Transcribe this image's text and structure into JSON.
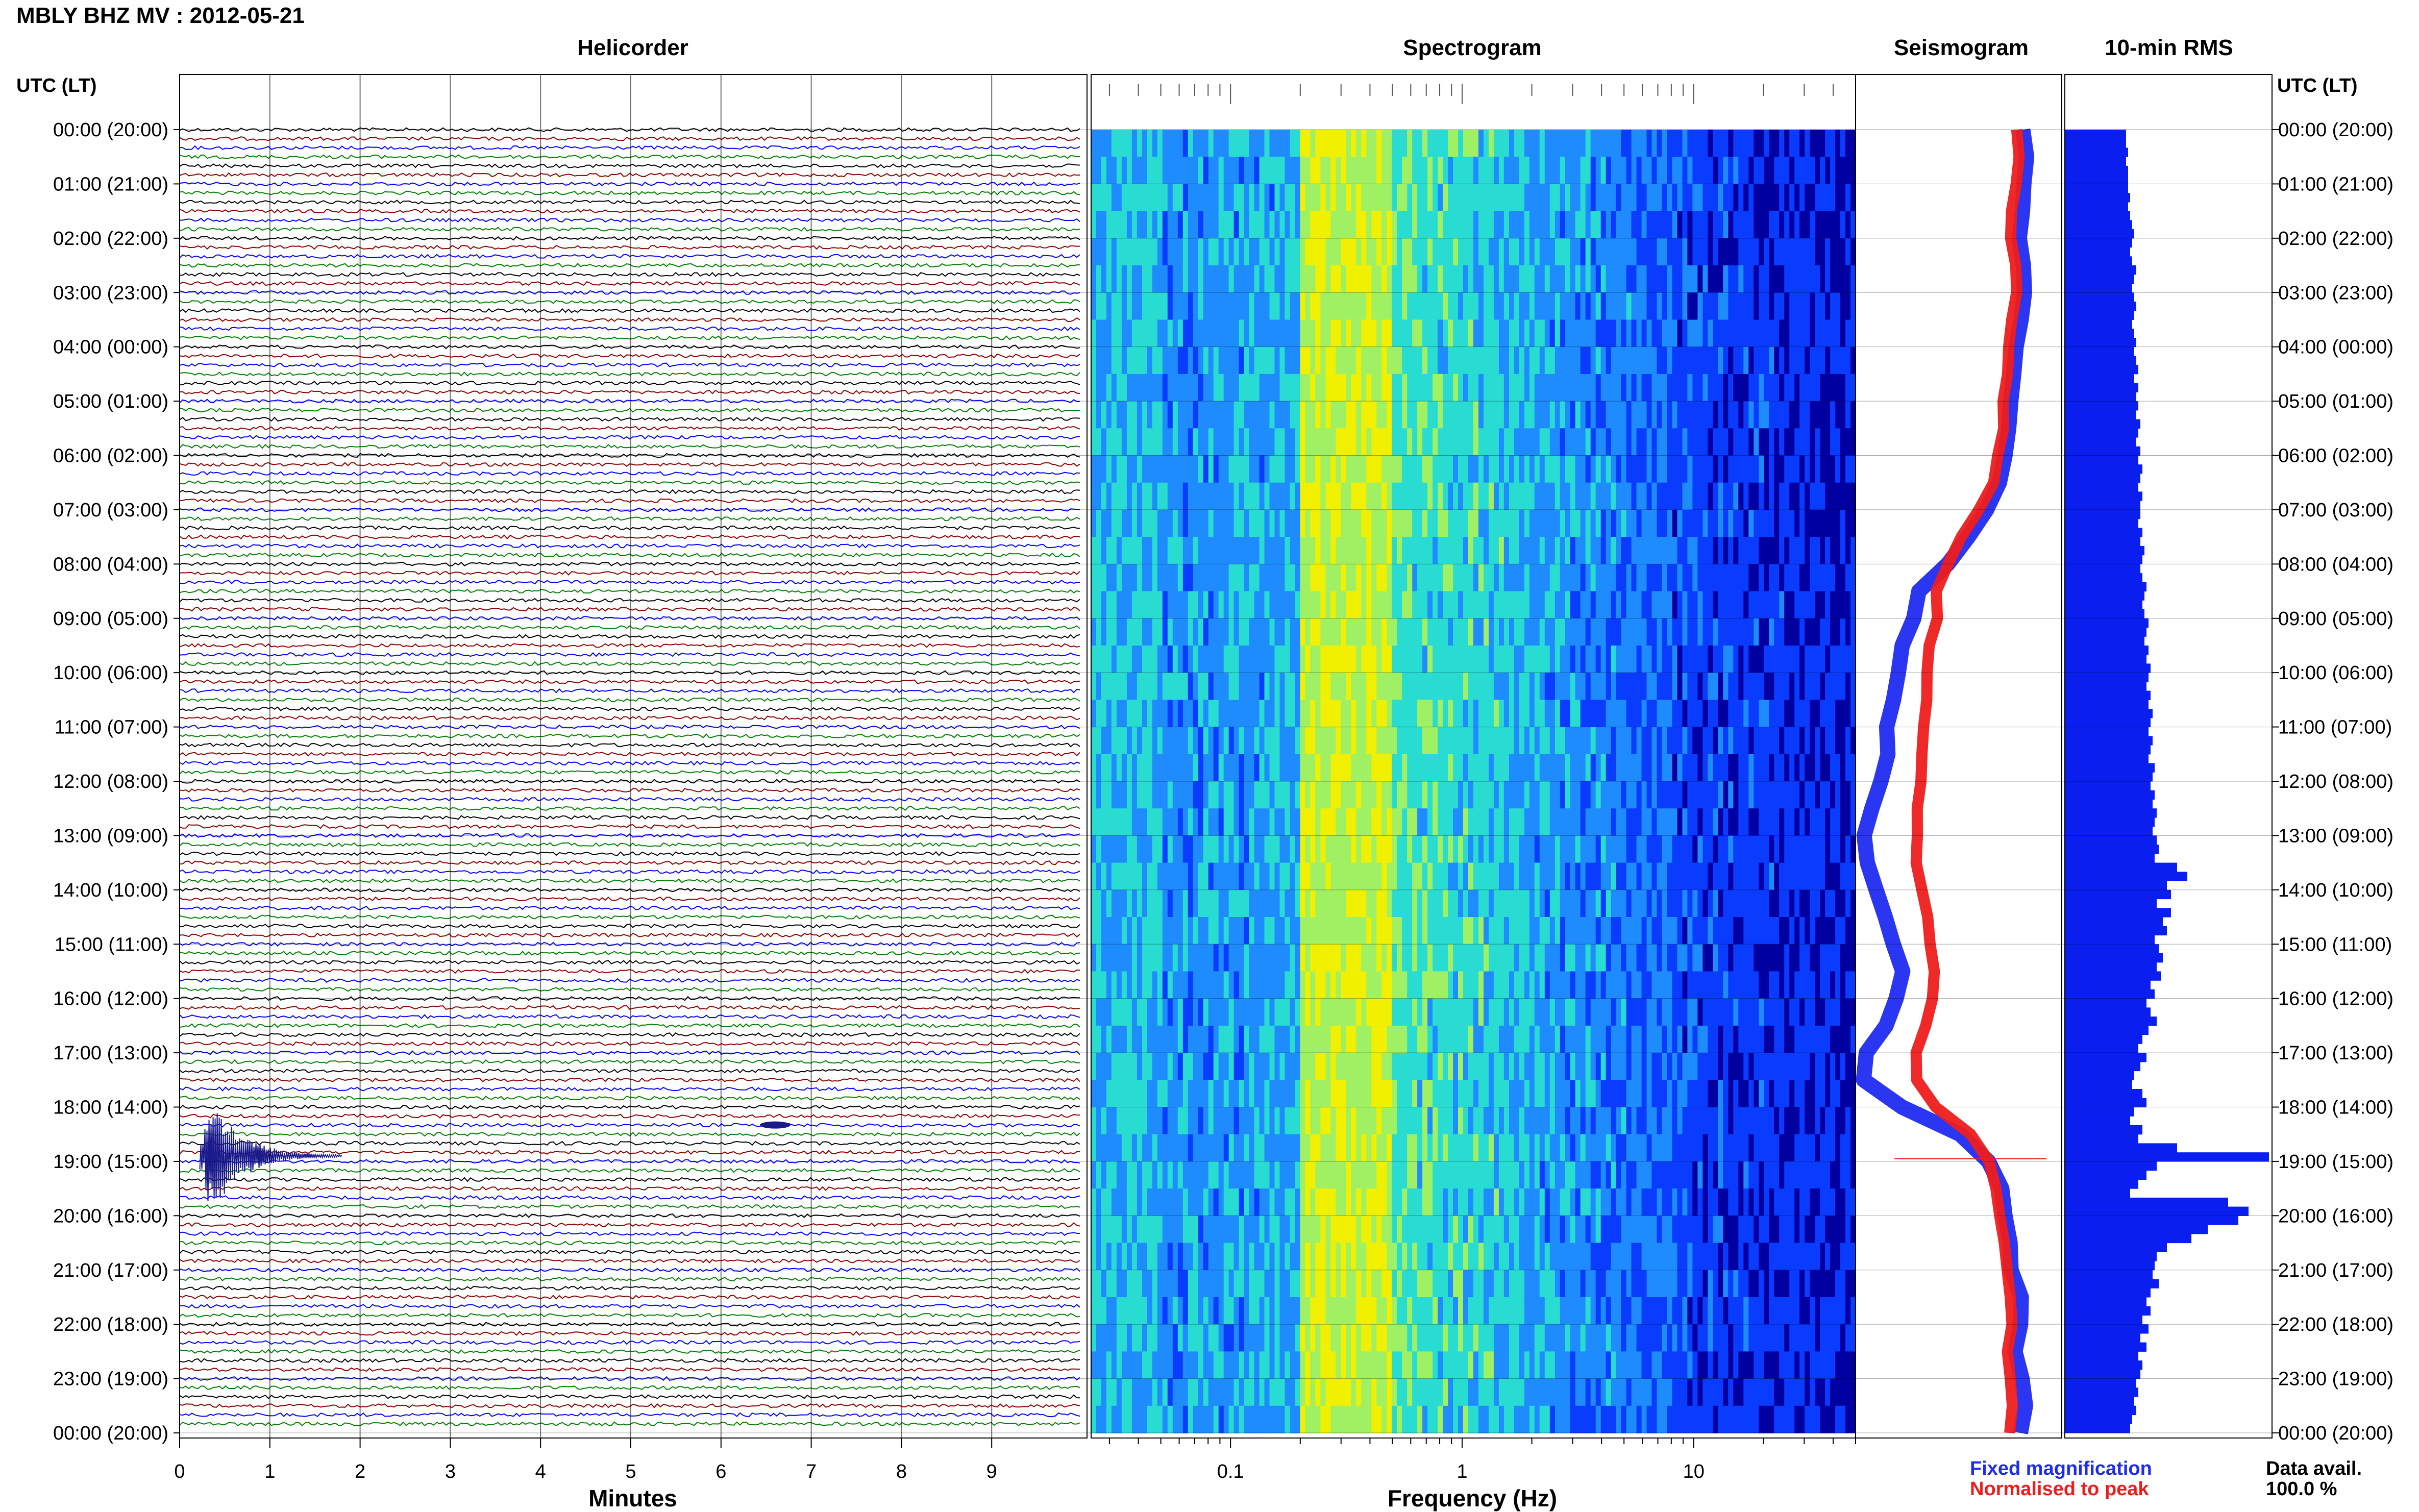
{
  "title": "MBLY BHZ MV : 2012-05-21",
  "panels": {
    "helicorder": "Helicorder",
    "spectrogram": "Spectrogram",
    "seismogram": "Seismogram",
    "rms": "10-min RMS"
  },
  "time_axis_label": "UTC (LT)",
  "hour_labels": [
    "00:00 (20:00)",
    "01:00 (21:00)",
    "02:00 (22:00)",
    "03:00 (23:00)",
    "04:00 (00:00)",
    "05:00 (01:00)",
    "06:00 (02:00)",
    "07:00 (03:00)",
    "08:00 (04:00)",
    "09:00 (05:00)",
    "10:00 (06:00)",
    "11:00 (07:00)",
    "12:00 (08:00)",
    "13:00 (09:00)",
    "14:00 (10:00)",
    "15:00 (11:00)",
    "16:00 (12:00)",
    "17:00 (13:00)",
    "18:00 (14:00)",
    "19:00 (15:00)",
    "20:00 (16:00)",
    "21:00 (17:00)",
    "22:00 (18:00)",
    "23:00 (19:00)",
    "00:00 (20:00)"
  ],
  "legend": {
    "fixed": "Fixed magnification",
    "normalised": "Normalised to peak",
    "fixed_color": "#1f2bf0",
    "normalised_color": "#ee1c1c"
  },
  "data_availability": {
    "label": "Data avail.",
    "value": "100.0 %"
  },
  "trace_colors": [
    "#000000",
    "#8b0000",
    "#0000ff",
    "#008000"
  ],
  "chart_data": [
    {
      "type": "line",
      "title": "Helicorder",
      "xlabel": "Minutes",
      "x_ticks": [
        0,
        1,
        2,
        3,
        4,
        5,
        6,
        7,
        8,
        9
      ],
      "xlim": [
        0,
        10
      ],
      "ylabel": "UTC (LT)",
      "ylim_hours": [
        0,
        24
      ],
      "traces_per_hour": 6,
      "events": [
        {
          "hour": 18.9,
          "minute": 0.45,
          "note": "large event"
        },
        {
          "hour": 18.33,
          "minute": 6.6,
          "note": "small event"
        }
      ]
    },
    {
      "type": "heatmap",
      "title": "Spectrogram",
      "xlabel": "Frequency (Hz)",
      "x_scale": "log",
      "x_tick_labels": [
        "0.1",
        "1",
        "10"
      ],
      "xlim": [
        0.025,
        50
      ],
      "colormap": [
        "#0000a0",
        "#0a3cff",
        "#1e8cff",
        "#28dcd2",
        "#a0f064",
        "#f0f000"
      ],
      "peak_band_hz": [
        0.2,
        0.5
      ],
      "ylim_hours": [
        0,
        24
      ]
    },
    {
      "type": "line",
      "title": "Seismogram",
      "series": [
        {
          "name": "Fixed magnification",
          "color": "#1f2bf0",
          "x": [
            0.82,
            0.83,
            0.82,
            0.8,
            0.8,
            0.81,
            0.82,
            0.8,
            0.78,
            0.77,
            0.76,
            0.75,
            0.73,
            0.7,
            0.63,
            0.55,
            0.45,
            0.3,
            0.28,
            0.22,
            0.2,
            0.18,
            0.16,
            0.15,
            0.12,
            0.08,
            0.05,
            0.06,
            0.1,
            0.14,
            0.18,
            0.22,
            0.2,
            0.14,
            0.05,
            0.04,
            0.22,
            0.5,
            0.65,
            0.7,
            0.72,
            0.74,
            0.76,
            0.8,
            0.8,
            0.78,
            0.8,
            0.82,
            0.8
          ],
          "hours": [
            0,
            0.5,
            1,
            1.5,
            2,
            2.5,
            3,
            3.5,
            4,
            4.5,
            5,
            5.5,
            6,
            6.5,
            7,
            7.5,
            8,
            8.5,
            9,
            9.5,
            10,
            10.5,
            11,
            11.5,
            12,
            12.5,
            13,
            13.5,
            14,
            14.5,
            15,
            15.5,
            16,
            16.5,
            17,
            17.5,
            18,
            18.5,
            19,
            19.5,
            20,
            20.5,
            21,
            21.5,
            22,
            22.5,
            23,
            23.5,
            24
          ]
        },
        {
          "name": "Normalised to peak",
          "color": "#ee1c1c",
          "x": [
            0.78,
            0.79,
            0.78,
            0.76,
            0.76,
            0.77,
            0.78,
            0.76,
            0.74,
            0.73,
            0.72,
            0.71,
            0.69,
            0.66,
            0.59,
            0.52,
            0.45,
            0.4,
            0.39,
            0.36,
            0.35,
            0.34,
            0.33,
            0.33,
            0.32,
            0.3,
            0.29,
            0.3,
            0.32,
            0.34,
            0.36,
            0.38,
            0.37,
            0.34,
            0.3,
            0.3,
            0.38,
            0.55,
            0.65,
            0.68,
            0.7,
            0.72,
            0.73,
            0.75,
            0.75,
            0.74,
            0.75,
            0.76,
            0.75
          ],
          "hours": [
            0,
            0.5,
            1,
            1.5,
            2,
            2.5,
            3,
            3.5,
            4,
            4.5,
            5,
            5.5,
            6,
            6.5,
            7,
            7.5,
            8,
            8.5,
            9,
            9.5,
            10,
            10.5,
            11,
            11.5,
            12,
            12.5,
            13,
            13.5,
            14,
            14.5,
            15,
            15.5,
            16,
            16.5,
            17,
            17.5,
            18,
            18.5,
            19,
            19.5,
            20,
            20.5,
            21,
            21.5,
            22,
            22.5,
            23,
            23.5,
            24
          ]
        }
      ]
    },
    {
      "type": "bar",
      "title": "10-min RMS",
      "orientation": "horizontal",
      "interval_minutes": 10,
      "values_relative": [
        0.3,
        0.3,
        0.31,
        0.3,
        0.31,
        0.31,
        0.31,
        0.32,
        0.31,
        0.32,
        0.33,
        0.34,
        0.33,
        0.32,
        0.33,
        0.35,
        0.34,
        0.33,
        0.34,
        0.35,
        0.34,
        0.33,
        0.34,
        0.35,
        0.34,
        0.35,
        0.36,
        0.34,
        0.36,
        0.35,
        0.36,
        0.35,
        0.37,
        0.36,
        0.35,
        0.37,
        0.36,
        0.38,
        0.37,
        0.36,
        0.38,
        0.37,
        0.37,
        0.36,
        0.38,
        0.37,
        0.39,
        0.38,
        0.37,
        0.38,
        0.4,
        0.39,
        0.38,
        0.39,
        0.41,
        0.4,
        0.39,
        0.41,
        0.4,
        0.42,
        0.41,
        0.4,
        0.42,
        0.41,
        0.43,
        0.42,
        0.41,
        0.43,
        0.42,
        0.41,
        0.44,
        0.43,
        0.42,
        0.44,
        0.43,
        0.45,
        0.44,
        0.43,
        0.45,
        0.46,
        0.44,
        0.55,
        0.6,
        0.5,
        0.52,
        0.45,
        0.52,
        0.48,
        0.5,
        0.44,
        0.46,
        0.48,
        0.45,
        0.47,
        0.42,
        0.44,
        0.4,
        0.42,
        0.45,
        0.41,
        0.38,
        0.36,
        0.4,
        0.37,
        0.34,
        0.33,
        0.38,
        0.4,
        0.34,
        0.32,
        0.38,
        0.36,
        0.55,
        1.0,
        0.45,
        0.4,
        0.36,
        0.32,
        0.8,
        0.9,
        0.85,
        0.7,
        0.62,
        0.5,
        0.45,
        0.44,
        0.43,
        0.46,
        0.42,
        0.4,
        0.42,
        0.38,
        0.41,
        0.37,
        0.4,
        0.36,
        0.38,
        0.37,
        0.35,
        0.36,
        0.34,
        0.35,
        0.33,
        0.32
      ]
    }
  ]
}
